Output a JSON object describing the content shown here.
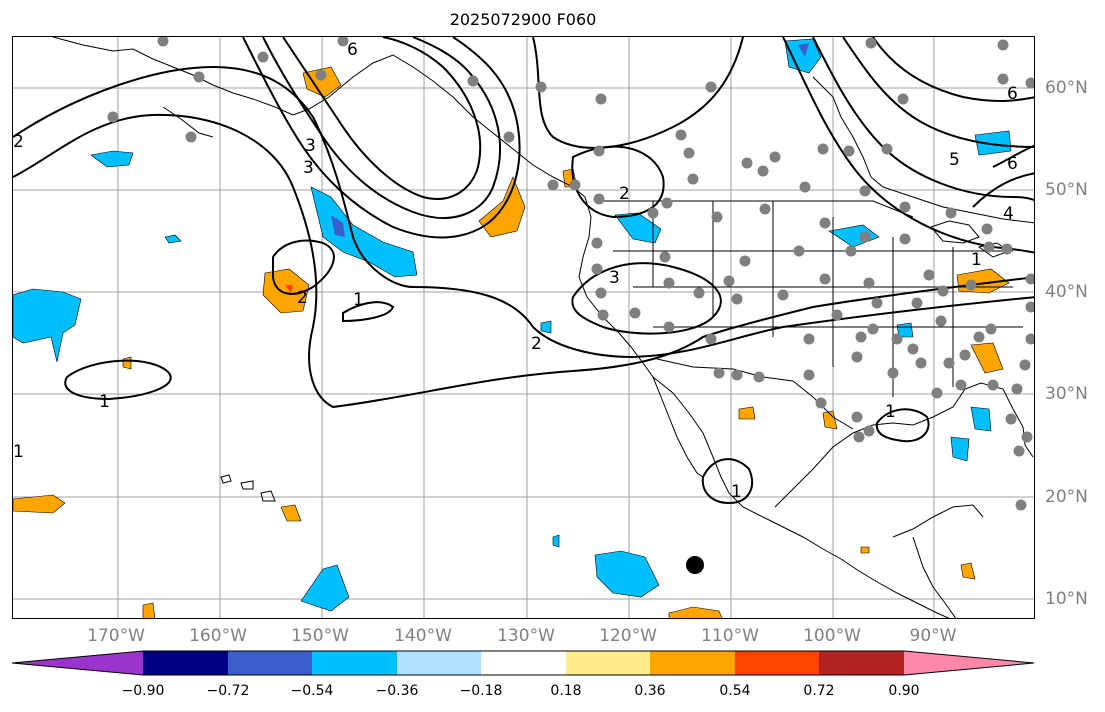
{
  "title": "2025072900 F060",
  "lon_labels": [
    "170°W",
    "160°W",
    "150°W",
    "140°W",
    "130°W",
    "120°W",
    "110°W",
    "100°W",
    "90°W"
  ],
  "lat_labels": [
    "60°N",
    "50°N",
    "40°N",
    "30°N",
    "20°N",
    "10°N"
  ],
  "contour_labels": [
    "1",
    "1",
    "1",
    "1",
    "1",
    "1",
    "2",
    "2",
    "2",
    "2",
    "3",
    "3",
    "3",
    "4",
    "5",
    "6",
    "6",
    "6"
  ],
  "colorbar": {
    "ticks": [
      "−0.90",
      "−0.72",
      "−0.54",
      "−0.36",
      "−0.18",
      "0.18",
      "0.36",
      "0.54",
      "0.72",
      "0.90"
    ],
    "colors": [
      "#9a34cd",
      "#000080",
      "#3a5fcd",
      "#00bfff",
      "#b0e2ff",
      "#ffffff",
      "#ffec8b",
      "#ffa500",
      "#ff4500",
      "#b22222",
      "#ff88aa"
    ]
  },
  "colors": {
    "land_outline": "#000000",
    "grid": "#a0a0a0",
    "station_dot": "#808080",
    "marker": "#000000"
  }
}
